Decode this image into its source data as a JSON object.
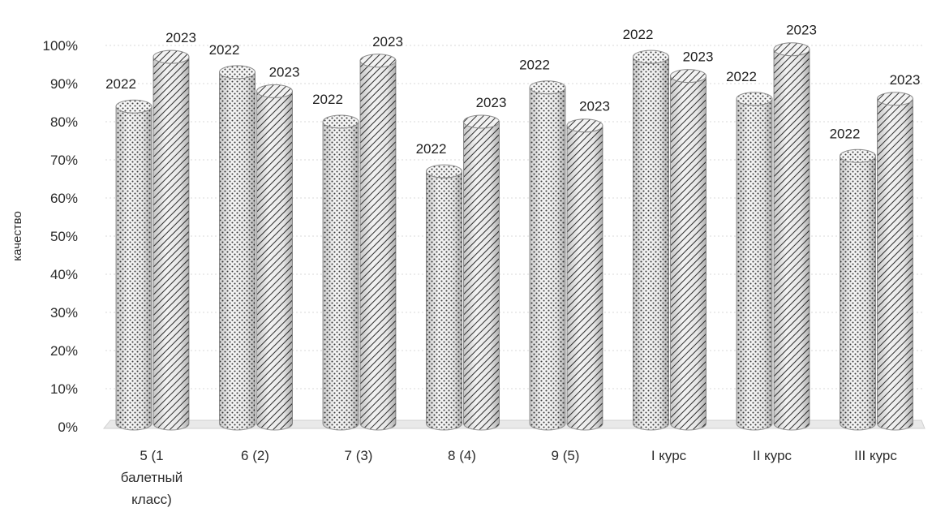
{
  "chart_data": {
    "type": "bar",
    "ylabel": "качество",
    "xlabel": "",
    "ylim": [
      0,
      100
    ],
    "y_ticks": [
      "0%",
      "10%",
      "20%",
      "30%",
      "40%",
      "50%",
      "60%",
      "70%",
      "80%",
      "90%",
      "100%"
    ],
    "categories": [
      [
        "5 (1",
        "балетный",
        "класс)"
      ],
      [
        "6 (2)"
      ],
      [
        "7 (3)"
      ],
      [
        "8 (4)"
      ],
      [
        "9 (5)"
      ],
      [
        "I курс"
      ],
      [
        "II курс"
      ],
      [
        "III курс"
      ]
    ],
    "series": [
      {
        "name": "2022",
        "values": [
          84,
          93,
          80,
          67,
          89,
          97,
          86,
          71
        ],
        "pattern": "dots"
      },
      {
        "name": "2023",
        "values": [
          97,
          88,
          96,
          80,
          79,
          92,
          99,
          86
        ],
        "pattern": "hatch"
      }
    ],
    "grid": true,
    "legend": "none",
    "colors": {
      "bar_fill": "#f4f4f4",
      "ink": "#2b2b2b",
      "grid": "#d8d8d8"
    }
  }
}
